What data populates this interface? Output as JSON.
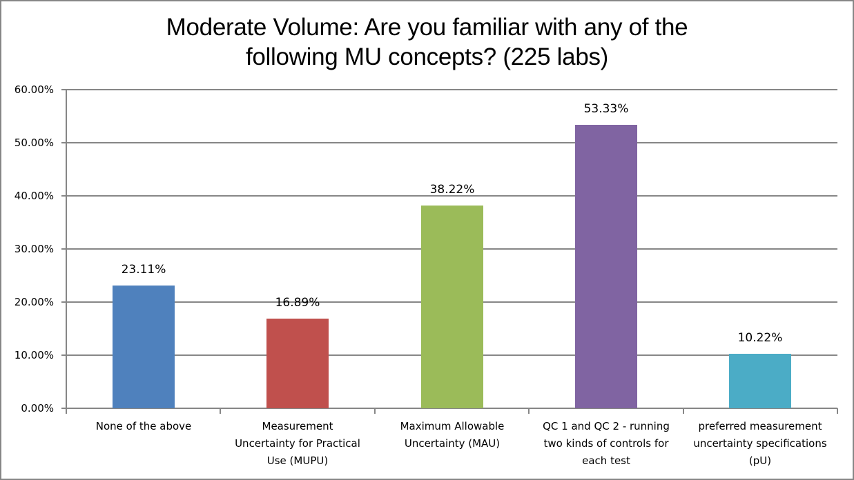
{
  "chart_data": {
    "type": "bar",
    "title": "Moderate Volume: Are you familiar with any of the following MU concepts? (225 labs)",
    "title_lines": [
      "Moderate Volume: Are you familiar with any of the",
      "following MU concepts? (225 labs)"
    ],
    "xlabel": "",
    "ylabel": "",
    "ylim": [
      0,
      60
    ],
    "yticks": [
      "0.00%",
      "10.00%",
      "20.00%",
      "30.00%",
      "40.00%",
      "50.00%",
      "60.00%"
    ],
    "grid": true,
    "legend": null,
    "categories": [
      "None of the above",
      "Measurement Uncertainty for Practical Use (MUPU)",
      "Maximum Allowable Uncertainty (MAU)",
      "QC 1 and QC 2 - running two kinds of controls for each test",
      "preferred measurement uncertainty specifications (pU)"
    ],
    "category_label_lines": [
      [
        "None of the above"
      ],
      [
        "Measurement",
        "Uncertainty for Practical",
        "Use (MUPU)"
      ],
      [
        "Maximum Allowable",
        "Uncertainty (MAU)"
      ],
      [
        "QC 1 and QC 2 - running",
        "two kinds of controls for",
        "each test"
      ],
      [
        "preferred measurement",
        "uncertainty specifications",
        "(pU)"
      ]
    ],
    "values": [
      23.11,
      16.89,
      38.22,
      53.33,
      10.22
    ],
    "data_labels": [
      "23.11%",
      "16.89%",
      "38.22%",
      "53.33%",
      "10.22%"
    ],
    "colors": [
      "#4f81bd",
      "#c0504d",
      "#9bbb59",
      "#8064a2",
      "#4bacc6"
    ]
  }
}
